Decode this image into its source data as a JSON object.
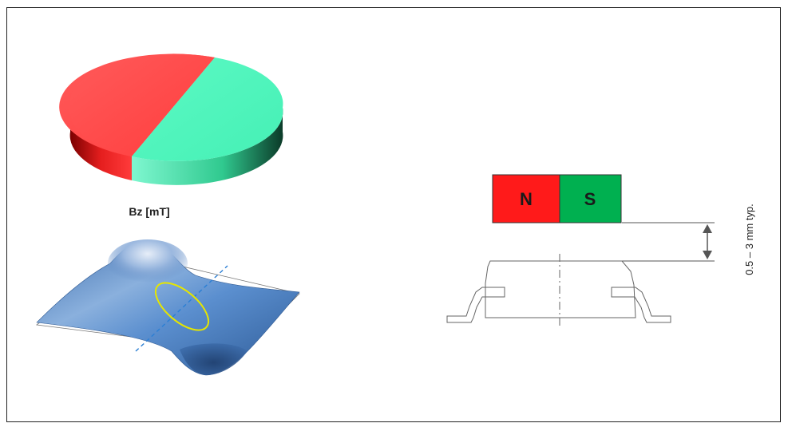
{
  "diagram": {
    "field_label": "Bz [mT]",
    "magnet": {
      "north_label": "N",
      "south_label": "S",
      "north_color": "#ff1a1a",
      "south_color": "#00b050"
    },
    "disc_colors": {
      "north": "#ff4d4d",
      "south": "#52f5bd"
    },
    "surface_color": "#4d7fc0",
    "ellipse_color": "#e6e600",
    "axis_line_color": "#2b7fd4",
    "distance_label": "0.5 – 3 mm typ."
  }
}
